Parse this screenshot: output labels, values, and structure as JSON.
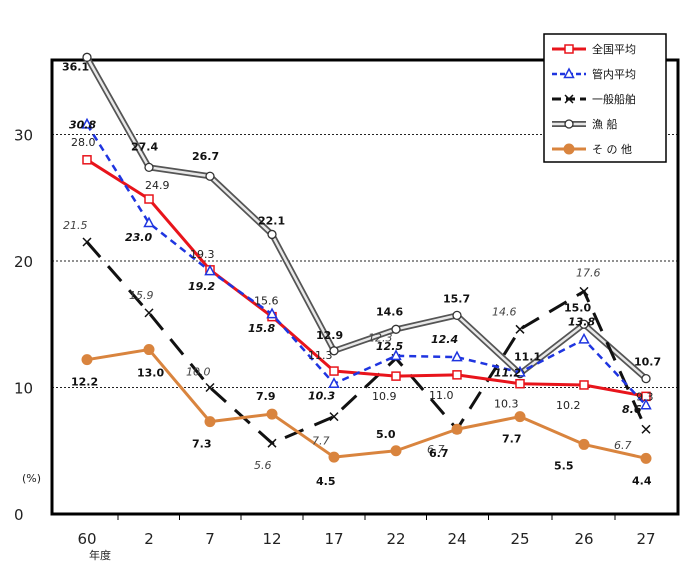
{
  "chart_data": {
    "type": "line",
    "categories": [
      "60",
      "2",
      "7",
      "12",
      "17",
      "22",
      "24",
      "25",
      "26",
      "27"
    ],
    "x_sublabel": "年度",
    "y_unit": "(%)",
    "ylim": [
      0,
      36.1
    ],
    "yticks": [
      "0",
      "10",
      "20",
      "30"
    ],
    "grid": "dotted horizontal at 10, 20, 30",
    "legend_position": "top-right",
    "series": [
      {
        "name": "全国平均",
        "color": "#e8141b",
        "style": "solid-square",
        "values": [
          28.0,
          24.9,
          19.3,
          15.6,
          11.3,
          10.9,
          11.0,
          10.3,
          10.2,
          9.3
        ],
        "labels": [
          "28.0",
          "24.9",
          "19.3",
          "15.6",
          "11.3",
          "10.9",
          "11.0",
          "10.3",
          "10.2",
          "9.3"
        ]
      },
      {
        "name": "管内平均",
        "color": "#1f35e0",
        "style": "dash-triangle",
        "values": [
          30.8,
          23.0,
          19.2,
          15.8,
          10.3,
          12.5,
          12.4,
          11.2,
          13.8,
          8.6
        ],
        "labels": [
          "30.8",
          "23.0",
          "19.2",
          "15.8",
          "10.3",
          "12.5",
          "12.4",
          "11.2",
          "13.8",
          "8.6"
        ]
      },
      {
        "name": "一般船舶",
        "color": "#111111",
        "style": "longdash-x",
        "values": [
          21.5,
          15.9,
          10.0,
          5.6,
          7.7,
          12.3,
          6.7,
          14.6,
          17.6,
          6.7
        ],
        "labels": [
          "21.5",
          "15.9",
          "10.0",
          "5.6",
          "7.7",
          "12.3",
          "6.7",
          "14.6",
          "17.6",
          "6.7"
        ]
      },
      {
        "name": "漁 船",
        "color": "#7a7a7a",
        "style": "double-circle",
        "values": [
          36.1,
          27.4,
          26.7,
          22.1,
          12.9,
          14.6,
          15.7,
          11.1,
          15.0,
          10.7
        ],
        "labels": [
          "36.1",
          "27.4",
          "26.7",
          "22.1",
          "12.9",
          "14.6",
          "15.7",
          "11.1",
          "15.0",
          "10.7"
        ]
      },
      {
        "name": "そ の 他",
        "color": "#d9843e",
        "style": "solid-dot",
        "values": [
          12.2,
          13.0,
          7.3,
          7.9,
          4.5,
          5.0,
          6.7,
          7.7,
          5.5,
          4.4
        ],
        "labels": [
          "12.2",
          "13.0",
          "7.3",
          "7.9",
          "4.5",
          "5.0",
          "6.7",
          "7.7",
          "5.5",
          "4.4"
        ]
      }
    ]
  }
}
